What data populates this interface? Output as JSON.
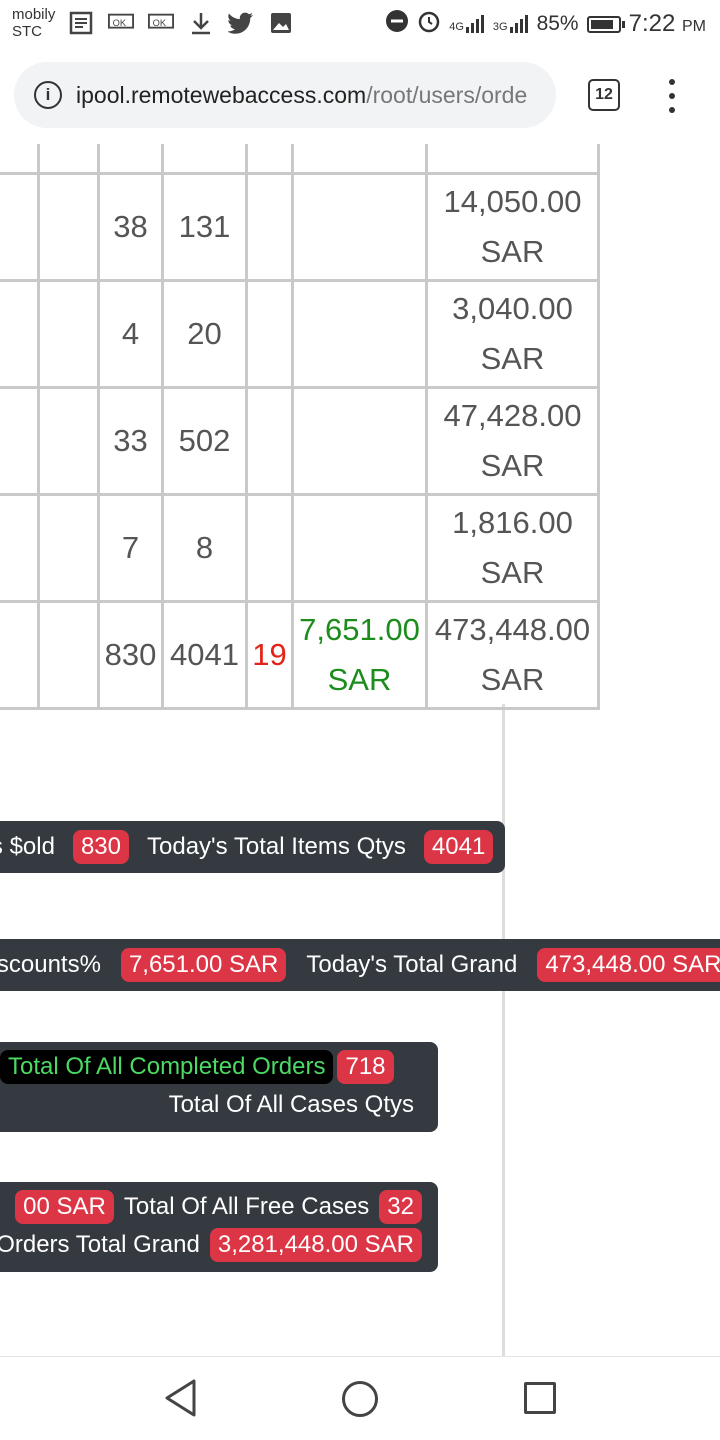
{
  "status_bar": {
    "carrier_line1": "mobily",
    "carrier_line2": "STC",
    "notification_icons": [
      "news-icon",
      "ok-icon",
      "ok-icon",
      "download-icon",
      "twitter-icon",
      "image-icon"
    ],
    "network_4g": "4G",
    "network_3g": "3G",
    "battery": "85%",
    "battery_level": 0.85,
    "time": "7:22",
    "time_suffix": "PM"
  },
  "browser": {
    "url_host": "ipool.remotewebaccess.com",
    "url_path": "/root/users/orde",
    "tab_count": "12"
  },
  "table": {
    "rows": [
      {
        "c3": "38",
        "c4": "131",
        "amount": "14,050.00",
        "currency": "SAR"
      },
      {
        "c3": "4",
        "c4": "20",
        "amount": "3,040.00",
        "currency": "SAR"
      },
      {
        "c3": "33",
        "c4": "502",
        "amount": "47,428.00",
        "currency": "SAR"
      },
      {
        "c3": "7",
        "c4": "8",
        "amount": "1,816.00",
        "currency": "SAR"
      }
    ],
    "totals": {
      "items": "830",
      "qtys": "4041",
      "count": "19",
      "discount": "7,651.00",
      "discount_currency": "SAR",
      "grand": "473,448.00",
      "grand_currency": "SAR"
    }
  },
  "summary": {
    "items_sold_label": "Today's Total Items $old",
    "items_sold_value": "830",
    "items_qtys_label": "Today's Total Items Qtys",
    "items_qtys_value": "4041",
    "discounts_label": "Today's Total Discounts%",
    "discounts_value": "7,651.00 SAR",
    "grand_label": "Today's Total Grand",
    "grand_value": "473,448.00 SAR",
    "completed_orders_label": "Total Of All Completed Orders",
    "completed_orders_value": "718",
    "cases_qtys_label": "Total Of All Cases Qtys",
    "partial_value": "00 SAR",
    "free_cases_label": "Total Of All Free Cases",
    "free_cases_value": "32",
    "orders_grand_label": "Orders Total Grand",
    "orders_grand_value": "3,281,448.00 SAR"
  },
  "colors": {
    "badge_red": "#dc3545",
    "pill_dark": "#343a40",
    "discount_green": "#1c8c1c",
    "count_red": "#e2231a"
  }
}
